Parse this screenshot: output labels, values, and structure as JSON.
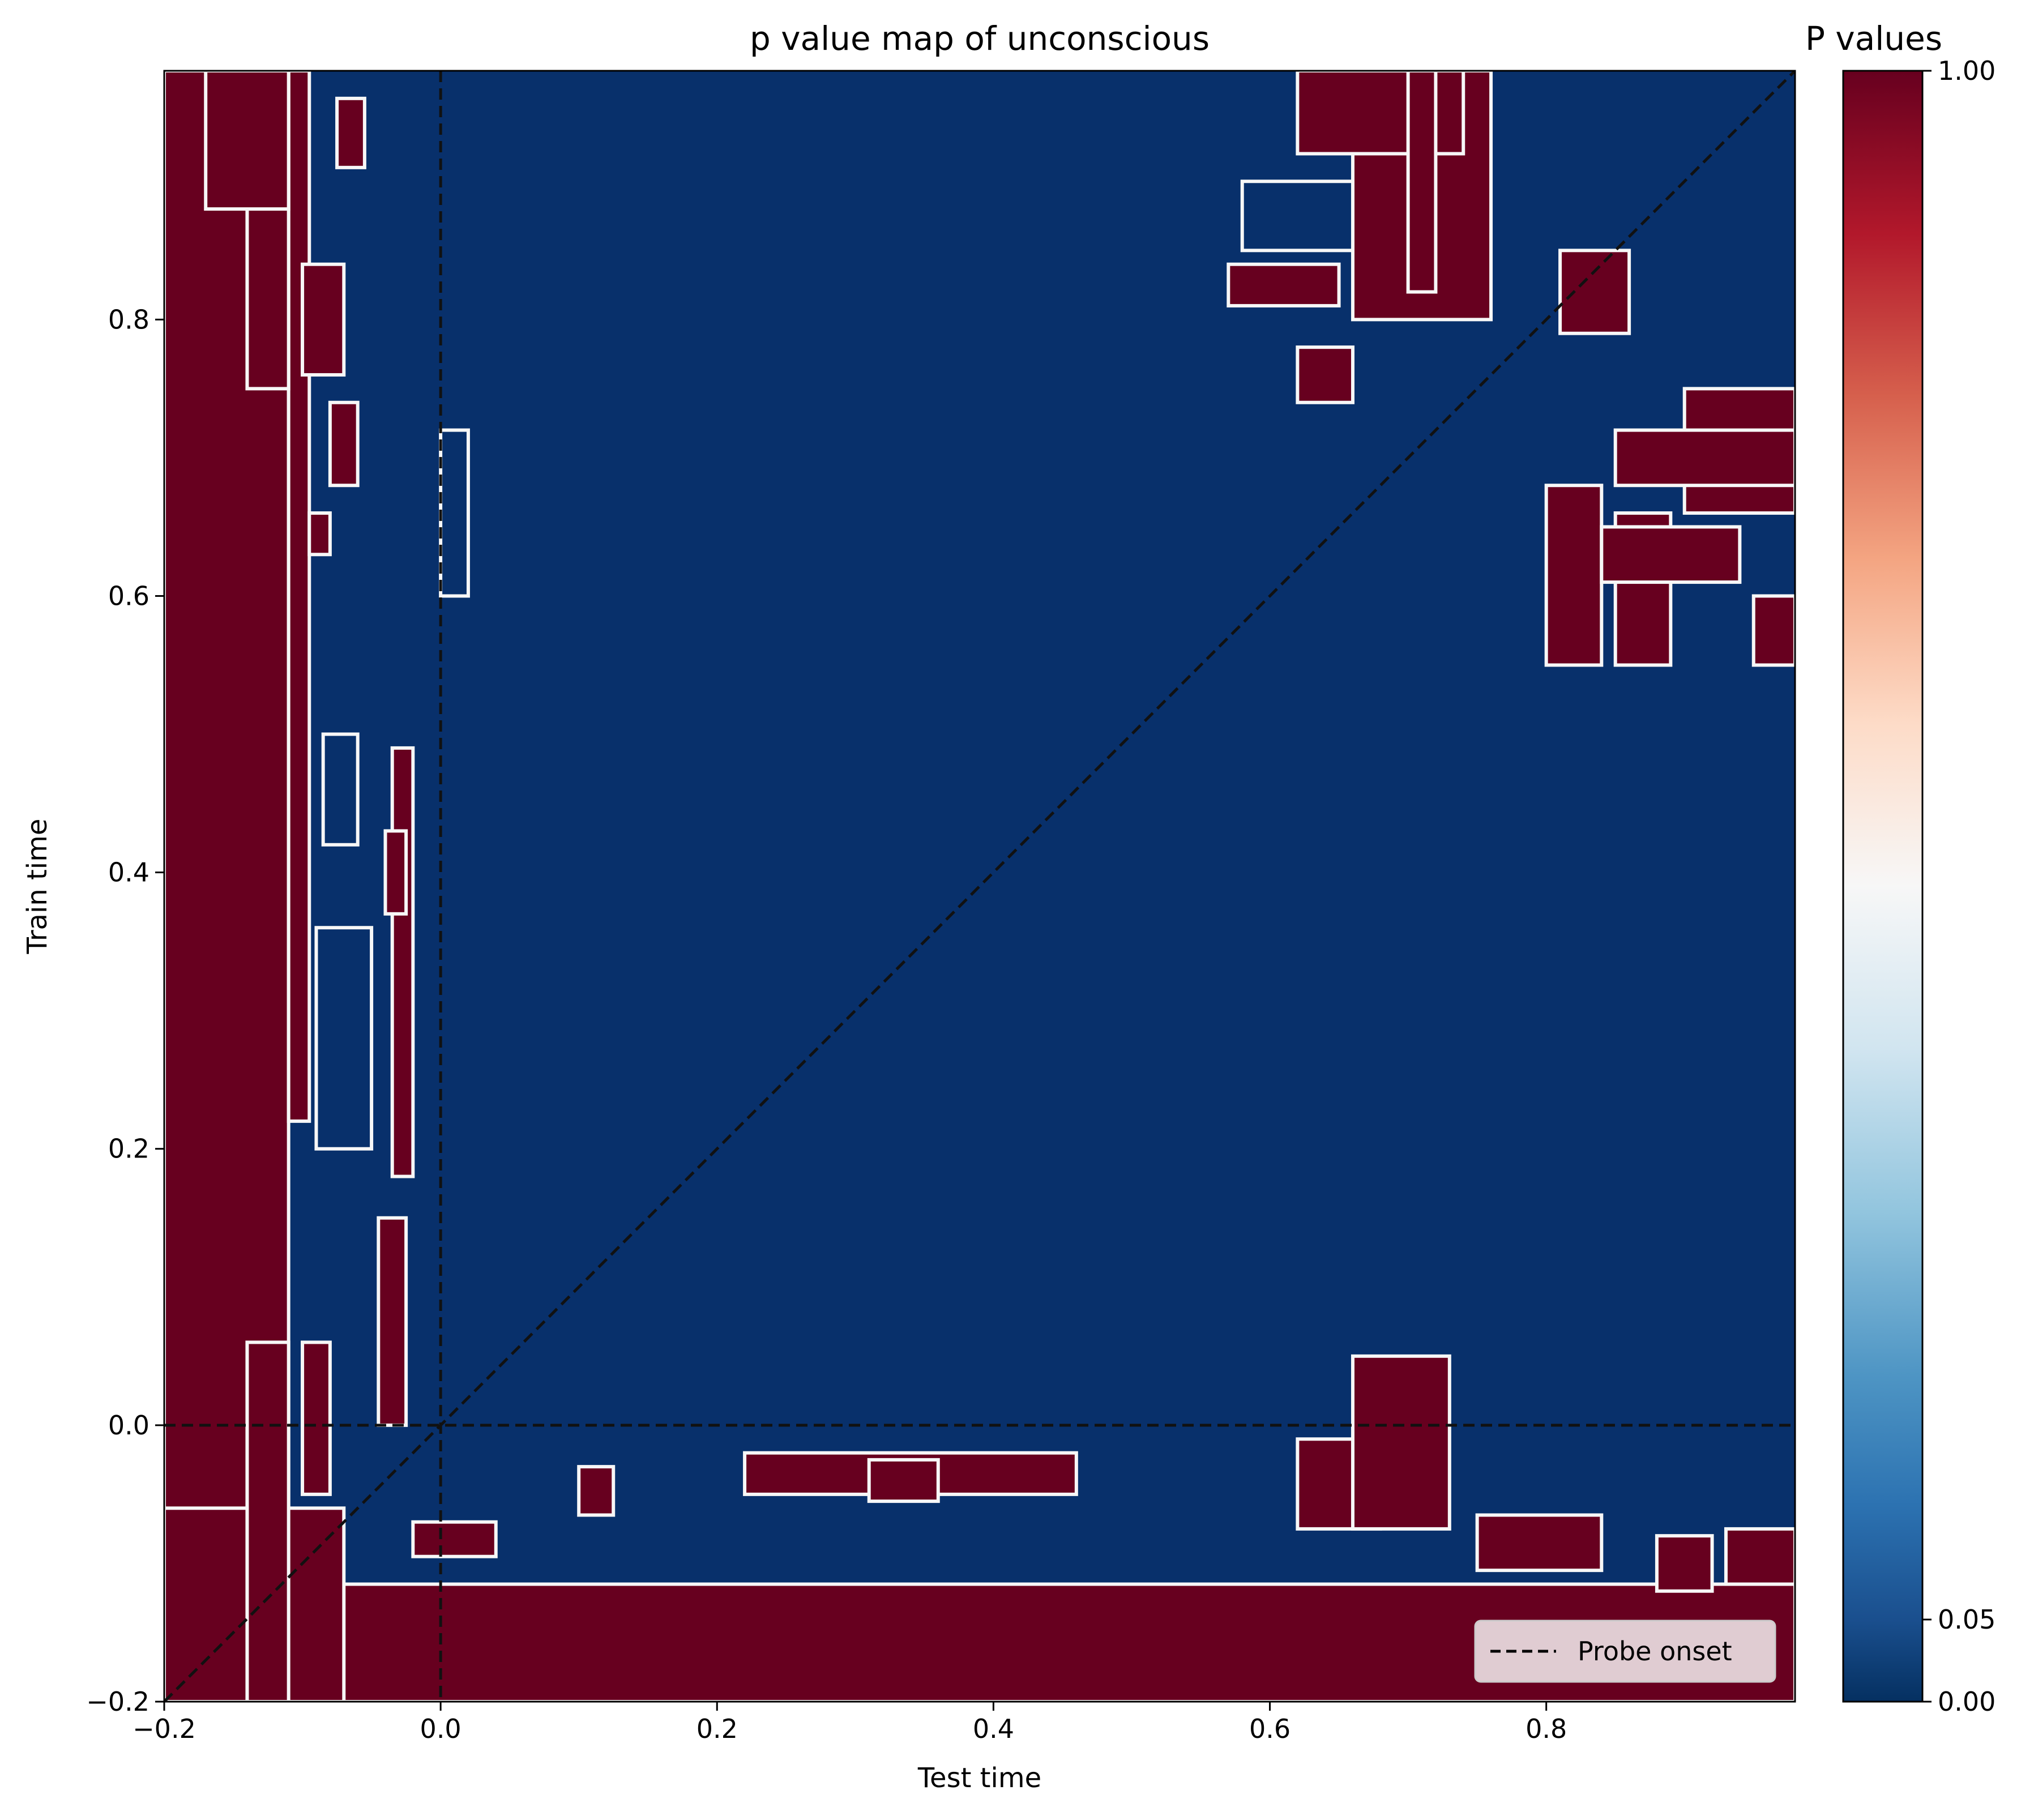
{
  "chart_data": {
    "type": "heatmap",
    "title": "p value map of unconscious",
    "xlabel": "Test time",
    "ylabel": "Train time",
    "xlim": [
      -0.2,
      0.98
    ],
    "ylim": [
      -0.2,
      0.98
    ],
    "xticks": [
      -0.2,
      0.0,
      0.2,
      0.4,
      0.6,
      0.8
    ],
    "xtick_labels": [
      "−0.2",
      "0.0",
      "0.2",
      "0.4",
      "0.6",
      "0.8"
    ],
    "yticks": [
      -0.2,
      0.0,
      0.2,
      0.4,
      0.6,
      0.8
    ],
    "ytick_labels": [
      "−0.2",
      "0.0",
      "0.2",
      "0.4",
      "0.6",
      "0.8"
    ],
    "colormap": "RdBu_r",
    "colorbar": {
      "title": "P values",
      "range": [
        0.0,
        1.0
      ],
      "ticks": [
        0.0,
        0.05,
        1.0
      ],
      "tick_labels": [
        "0.00",
        "0.05",
        "1.00"
      ],
      "stops": [
        {
          "value": 0.0,
          "color": "#053061"
        },
        {
          "value": 0.05,
          "color": "#1a4f8e"
        },
        {
          "value": 0.12,
          "color": "#2c72b1"
        },
        {
          "value": 0.2,
          "color": "#4e95c4"
        },
        {
          "value": 0.3,
          "color": "#92c5de"
        },
        {
          "value": 0.4,
          "color": "#d1e5f0"
        },
        {
          "value": 0.5,
          "color": "#f7f7f7"
        },
        {
          "value": 0.6,
          "color": "#fddbc7"
        },
        {
          "value": 0.7,
          "color": "#f4a582"
        },
        {
          "value": 0.8,
          "color": "#d6604d"
        },
        {
          "value": 0.9,
          "color": "#b2182b"
        },
        {
          "value": 1.0,
          "color": "#67001f"
        }
      ]
    },
    "background_value": 0.0,
    "significant_color": "#08306b",
    "nonsignificant_color": "#67001f",
    "contour_color": "#f7f7f7",
    "reference_lines": [
      {
        "type": "vertical",
        "x": 0.0,
        "style": "dashed"
      },
      {
        "type": "horizontal",
        "y": 0.0,
        "style": "dashed"
      },
      {
        "type": "diagonal",
        "from": [
          -0.2,
          -0.2
        ],
        "to": [
          0.98,
          0.98
        ],
        "style": "dashed"
      }
    ],
    "legend": {
      "entries": [
        "Probe onset"
      ],
      "placement": "lower-right"
    },
    "nonsignificant_regions": [
      {
        "x": [
          -0.2,
          -0.11
        ],
        "y": [
          -0.2,
          0.98
        ],
        "p": 1.0
      },
      {
        "x": [
          -0.2,
          0.98
        ],
        "y": [
          -0.2,
          -0.115
        ],
        "p": 1.0
      },
      {
        "x": [
          -0.2,
          -0.07
        ],
        "y": [
          -0.2,
          -0.06
        ],
        "p": 1.0
      },
      {
        "x": [
          -0.11,
          -0.095
        ],
        "y": [
          0.22,
          0.98
        ],
        "p": 1.0
      },
      {
        "x": [
          -0.14,
          -0.11
        ],
        "y": [
          -0.2,
          0.06
        ],
        "p": 1.0
      },
      {
        "x": [
          -0.14,
          -0.11
        ],
        "y": [
          0.75,
          0.98
        ],
        "p": 1.0
      },
      {
        "x": [
          -0.17,
          -0.11
        ],
        "y": [
          0.88,
          0.98
        ],
        "p": 1.0
      },
      {
        "x": [
          -0.1,
          -0.08
        ],
        "y": [
          -0.05,
          0.06
        ],
        "p": 1.0
      },
      {
        "x": [
          -0.08,
          -0.06
        ],
        "y": [
          0.68,
          0.74
        ],
        "p": 1.0
      },
      {
        "x": [
          -0.075,
          -0.055
        ],
        "y": [
          0.91,
          0.96
        ],
        "p": 1.0
      },
      {
        "x": [
          -0.1,
          -0.07
        ],
        "y": [
          0.76,
          0.84
        ],
        "p": 1.0
      },
      {
        "x": [
          -0.045,
          -0.025
        ],
        "y": [
          0.0,
          0.15
        ],
        "p": 1.0
      },
      {
        "x": [
          -0.035,
          -0.02
        ],
        "y": [
          0.18,
          0.49
        ],
        "p": 1.0
      },
      {
        "x": [
          -0.04,
          -0.025
        ],
        "y": [
          0.37,
          0.43
        ],
        "p": 1.0
      },
      {
        "x": [
          -0.095,
          -0.08
        ],
        "y": [
          0.63,
          0.66
        ],
        "p": 1.0
      },
      {
        "x": [
          -0.02,
          0.04
        ],
        "y": [
          -0.095,
          -0.07
        ],
        "p": 1.0
      },
      {
        "x": [
          0.1,
          0.125
        ],
        "y": [
          -0.065,
          -0.03
        ],
        "p": 1.0
      },
      {
        "x": [
          0.22,
          0.46
        ],
        "y": [
          -0.05,
          -0.02
        ],
        "p": 1.0
      },
      {
        "x": [
          0.31,
          0.36
        ],
        "y": [
          -0.055,
          -0.025
        ],
        "p": 1.0
      },
      {
        "x": [
          0.62,
          0.68
        ],
        "y": [
          -0.075,
          -0.01
        ],
        "p": 1.0
      },
      {
        "x": [
          0.66,
          0.73
        ],
        "y": [
          -0.075,
          0.05
        ],
        "p": 1.0
      },
      {
        "x": [
          0.75,
          0.84
        ],
        "y": [
          -0.105,
          -0.065
        ],
        "p": 1.0
      },
      {
        "x": [
          0.93,
          0.98
        ],
        "y": [
          -0.115,
          -0.075
        ],
        "p": 1.0
      },
      {
        "x": [
          0.88,
          0.92
        ],
        "y": [
          -0.12,
          -0.08
        ],
        "p": 1.0
      },
      {
        "x": [
          0.66,
          0.76
        ],
        "y": [
          0.8,
          0.98
        ],
        "p": 1.0
      },
      {
        "x": [
          0.62,
          0.74
        ],
        "y": [
          0.92,
          0.98
        ],
        "p": 1.0
      },
      {
        "x": [
          0.7,
          0.72
        ],
        "y": [
          0.82,
          0.98
        ],
        "p": 1.0
      },
      {
        "x": [
          0.57,
          0.65
        ],
        "y": [
          0.81,
          0.84
        ],
        "p": 1.0
      },
      {
        "x": [
          0.62,
          0.66
        ],
        "y": [
          0.74,
          0.78
        ],
        "p": 1.0
      },
      {
        "x": [
          0.81,
          0.86
        ],
        "y": [
          0.79,
          0.85
        ],
        "p": 1.0
      },
      {
        "x": [
          0.9,
          0.98
        ],
        "y": [
          0.66,
          0.75
        ],
        "p": 1.0
      },
      {
        "x": [
          0.85,
          0.98
        ],
        "y": [
          0.68,
          0.72
        ],
        "p": 1.0
      },
      {
        "x": [
          0.8,
          0.84
        ],
        "y": [
          0.55,
          0.68
        ],
        "p": 1.0
      },
      {
        "x": [
          0.85,
          0.89
        ],
        "y": [
          0.55,
          0.66
        ],
        "p": 1.0
      },
      {
        "x": [
          0.84,
          0.94
        ],
        "y": [
          0.61,
          0.65
        ],
        "p": 1.0
      },
      {
        "x": [
          0.95,
          0.98
        ],
        "y": [
          0.55,
          0.6
        ],
        "p": 1.0
      }
    ],
    "significant_islands": [
      {
        "x": [
          -0.09,
          -0.05
        ],
        "y": [
          0.2,
          0.36
        ],
        "p": 0.0
      },
      {
        "x": [
          -0.085,
          -0.06
        ],
        "y": [
          0.42,
          0.5
        ],
        "p": 0.0
      },
      {
        "x": [
          0.0,
          0.02
        ],
        "y": [
          0.6,
          0.72
        ],
        "p": 0.0
      },
      {
        "x": [
          0.58,
          0.66
        ],
        "y": [
          0.85,
          0.9
        ],
        "p": 0.0
      }
    ]
  }
}
